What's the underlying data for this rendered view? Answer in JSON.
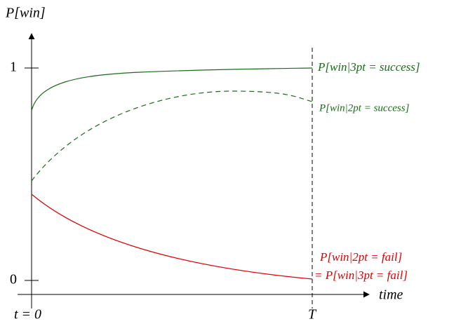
{
  "axes": {
    "y_label": "P[win]",
    "x_label": "time",
    "y_tick_top": "1",
    "y_tick_bottom": "0",
    "x_start": "t = 0",
    "x_end": "T"
  },
  "curves": [
    {
      "label": "P[win|3pt = success]"
    },
    {
      "label": "P[win|2pt = success]"
    },
    {
      "label": "P[win|2pt = fail]",
      "label2": "= P[win|3pt = fail]"
    }
  ]
}
